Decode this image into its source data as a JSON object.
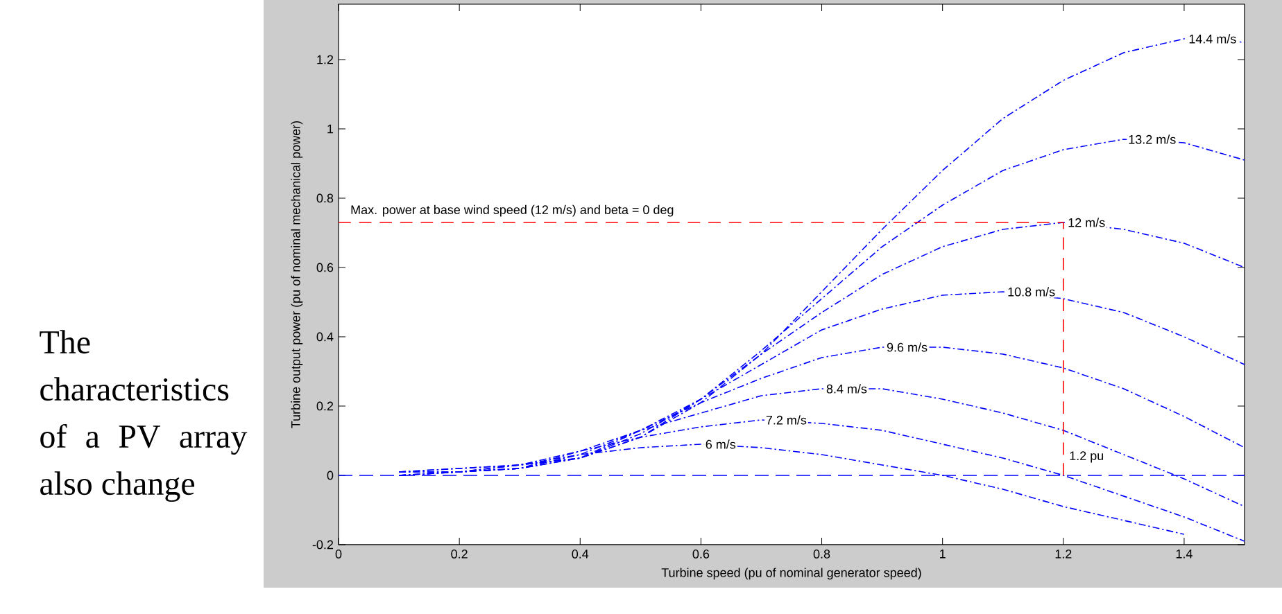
{
  "chart_data": {
    "type": "line",
    "xlabel": "Turbine speed (pu of nominal generator speed)",
    "ylabel": "Turbine output power (pu of nominal mechanical power)",
    "x": [
      0.1,
      0.2,
      0.3,
      0.4,
      0.5,
      0.6,
      0.7,
      0.8,
      0.9,
      1.0,
      1.1,
      1.2,
      1.3,
      1.4,
      1.5
    ],
    "series": [
      {
        "name": "6 m/s",
        "color": "#0000ff",
        "values": [
          0.0,
          0.01,
          0.03,
          0.06,
          0.08,
          0.09,
          0.08,
          0.06,
          0.03,
          0.0,
          -0.04,
          -0.09,
          -0.13,
          -0.17,
          null
        ]
      },
      {
        "name": "7.2 m/s",
        "color": "#0000ff",
        "values": [
          0.0,
          0.01,
          0.03,
          0.07,
          0.11,
          0.14,
          0.16,
          0.15,
          0.13,
          0.09,
          0.05,
          0.0,
          -0.06,
          -0.12,
          -0.19
        ]
      },
      {
        "name": "8.4 m/s",
        "color": "#0000ff",
        "values": [
          0.0,
          0.01,
          0.02,
          0.07,
          0.13,
          0.18,
          0.23,
          0.25,
          0.25,
          0.22,
          0.18,
          0.13,
          0.06,
          -0.01,
          -0.09
        ]
      },
      {
        "name": "9.6 m/s",
        "color": "#0000ff",
        "values": [
          0.0,
          0.01,
          0.02,
          0.06,
          0.13,
          0.21,
          0.28,
          0.34,
          0.37,
          0.37,
          0.35,
          0.31,
          0.25,
          0.17,
          0.08
        ]
      },
      {
        "name": "10.8 m/s",
        "color": "#0000ff",
        "values": [
          0.01,
          0.01,
          0.02,
          0.05,
          0.13,
          0.22,
          0.32,
          0.42,
          0.48,
          0.52,
          0.53,
          0.51,
          0.47,
          0.4,
          0.32
        ]
      },
      {
        "name": "12 m/s",
        "color": "#0000ff",
        "values": [
          0.01,
          0.01,
          0.02,
          0.05,
          0.12,
          0.22,
          0.35,
          0.47,
          0.58,
          0.66,
          0.71,
          0.73,
          0.71,
          0.67,
          0.6
        ]
      },
      {
        "name": "13.2 m/s",
        "color": "#0000ff",
        "values": [
          0.01,
          0.02,
          0.03,
          0.05,
          0.11,
          0.22,
          0.36,
          0.51,
          0.66,
          0.78,
          0.88,
          0.94,
          0.97,
          0.96,
          0.91
        ]
      },
      {
        "name": "14.4 m/s",
        "color": "#0000ff",
        "values": [
          0.01,
          0.02,
          0.03,
          0.05,
          0.11,
          0.21,
          0.35,
          0.53,
          0.71,
          0.88,
          1.03,
          1.14,
          1.22,
          1.26,
          1.25
        ]
      },
      {
        "type": "step",
        "x": [
          0,
          1.2
        ],
        "color": "#ff0000",
        "line_style": "dashed",
        "values": [
          0.73,
          0
        ]
      }
    ],
    "ref_lines": [
      {
        "axis": "y",
        "value": 0,
        "color": "#0000ff",
        "line_style": "dashed"
      }
    ],
    "annotations": [
      "The characteristics of a PV array also change",
      {
        "text": "Max. power at base wind speed (12 m/s) and beta = 0 deg",
        "x": 0.01,
        "y": 0.73
      },
      {
        "text": "1.2 pu",
        "x": 1.2,
        "y": 0.02
      }
    ],
    "line_style": "dashed",
    "xlim": [
      0,
      1.5
    ],
    "ylim": [
      -0.2,
      1.36
    ],
    "xticks": [
      0,
      0.2,
      0.4,
      0.6,
      0.8,
      1,
      1.2,
      1.4
    ],
    "yticks": [
      -0.2,
      0,
      0.2,
      0.4,
      0.6,
      0.8,
      1,
      1.2
    ]
  }
}
